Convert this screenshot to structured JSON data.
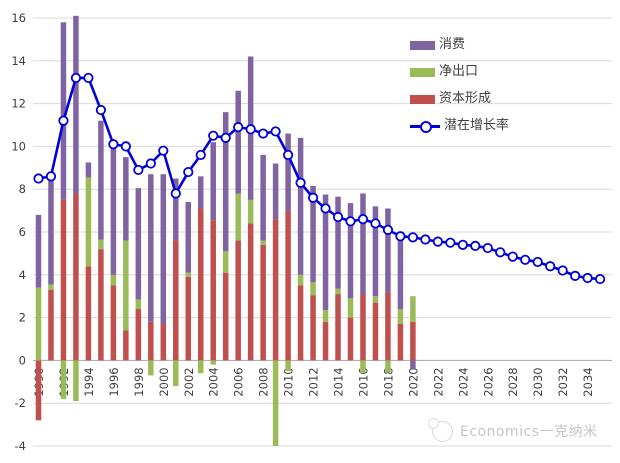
{
  "legend": {
    "items": [
      {
        "label": "消费",
        "color": "#8064A2",
        "kind": "bar"
      },
      {
        "label": "净出口",
        "color": "#9BBB59",
        "kind": "bar"
      },
      {
        "label": "资本形成",
        "color": "#C0504D",
        "kind": "bar"
      },
      {
        "label": "潜在增长率",
        "color": "#0000D8",
        "kind": "line"
      }
    ]
  },
  "watermark": {
    "text": "Economics一克纳米"
  },
  "axis": {
    "y_min": -4,
    "y_max": 16,
    "y_step": 2,
    "x_first_tick": 1990,
    "x_last_tick": 2034,
    "x_tick_step": 2
  },
  "colors": {
    "consumption": "#8064A2",
    "net_exports": "#9BBB59",
    "capital": "#C0504D",
    "line": "#0000D8",
    "marker_fill": "#ffffff",
    "grid": "#d9d9d9",
    "zero_axis": "#a6a6a6",
    "tick_text": "#404040"
  },
  "chart_data": {
    "type": "bar",
    "subtype": "stacked-bar-with-line",
    "title": "",
    "xlabel": "",
    "ylabel": "",
    "ylim": [
      -4,
      16
    ],
    "grid": "horizontal",
    "legend_position": "top-right",
    "x": [
      1990,
      1991,
      1992,
      1993,
      1994,
      1995,
      1996,
      1997,
      1998,
      1999,
      2000,
      2001,
      2002,
      2003,
      2004,
      2005,
      2006,
      2007,
      2008,
      2009,
      2010,
      2011,
      2012,
      2013,
      2014,
      2015,
      2016,
      2017,
      2018,
      2019,
      2020,
      2021,
      2022,
      2023,
      2024,
      2025,
      2026,
      2027,
      2028,
      2029,
      2030,
      2031,
      2032,
      2033,
      2034,
      2035
    ],
    "xticks": [
      1990,
      1992,
      1994,
      1996,
      1998,
      2000,
      2002,
      2004,
      2006,
      2008,
      2010,
      2012,
      2014,
      2016,
      2018,
      2020,
      2022,
      2024,
      2026,
      2028,
      2030,
      2032,
      2034
    ],
    "yticks": [
      -4,
      -2,
      0,
      2,
      4,
      6,
      8,
      10,
      12,
      14,
      16
    ],
    "stack_order": [
      "资本形成",
      "净出口",
      "消费"
    ],
    "series": [
      {
        "name": "消费",
        "type": "bar",
        "color": "#8064A2",
        "values": [
          3.4,
          5.25,
          8.3,
          8.3,
          0.7,
          5.55,
          5.9,
          3.9,
          5.2,
          6.9,
          7.0,
          2.9,
          3.3,
          1.5,
          3.65,
          6.5,
          4.8,
          6.7,
          4.0,
          2.6,
          3.6,
          6.4,
          4.5,
          5.4,
          4.3,
          4.45,
          4.7,
          4.2,
          3.9,
          3.2,
          -0.4
        ]
      },
      {
        "name": "净出口",
        "type": "bar",
        "color": "#9BBB59",
        "values": [
          3.4,
          0.25,
          -1.8,
          -1.9,
          4.15,
          0.45,
          0.5,
          4.2,
          0.45,
          -0.7,
          0.0,
          -1.2,
          0.2,
          -0.6,
          -0.2,
          1.0,
          2.2,
          1.1,
          0.2,
          -4.0,
          -0.5,
          0.5,
          0.6,
          0.55,
          0.25,
          0.9,
          -0.6,
          0.3,
          -0.55,
          0.7,
          1.2
        ]
      },
      {
        "name": "资本形成",
        "type": "bar",
        "color": "#C0504D",
        "values": [
          -2.8,
          3.3,
          7.5,
          7.8,
          4.4,
          5.2,
          3.5,
          1.4,
          2.4,
          1.8,
          1.7,
          5.6,
          3.9,
          7.1,
          6.55,
          4.1,
          5.6,
          6.4,
          5.4,
          6.6,
          7.0,
          3.5,
          3.05,
          1.8,
          3.1,
          2.0,
          3.1,
          2.7,
          3.2,
          1.7,
          1.8
        ]
      },
      {
        "name": "潜在增长率",
        "type": "line",
        "color": "#0000D8",
        "values": [
          8.5,
          8.6,
          11.2,
          13.2,
          13.2,
          11.7,
          10.1,
          10.0,
          8.9,
          9.2,
          9.8,
          7.8,
          8.8,
          9.6,
          10.5,
          10.4,
          10.9,
          10.8,
          10.6,
          10.7,
          9.6,
          8.3,
          7.6,
          7.1,
          6.7,
          6.5,
          6.6,
          6.4,
          6.1,
          5.8,
          5.75,
          5.65,
          5.55,
          5.5,
          5.4,
          5.35,
          5.25,
          5.05,
          4.85,
          4.7,
          4.6,
          4.4,
          4.2,
          3.95,
          3.85,
          3.8
        ]
      }
    ]
  }
}
